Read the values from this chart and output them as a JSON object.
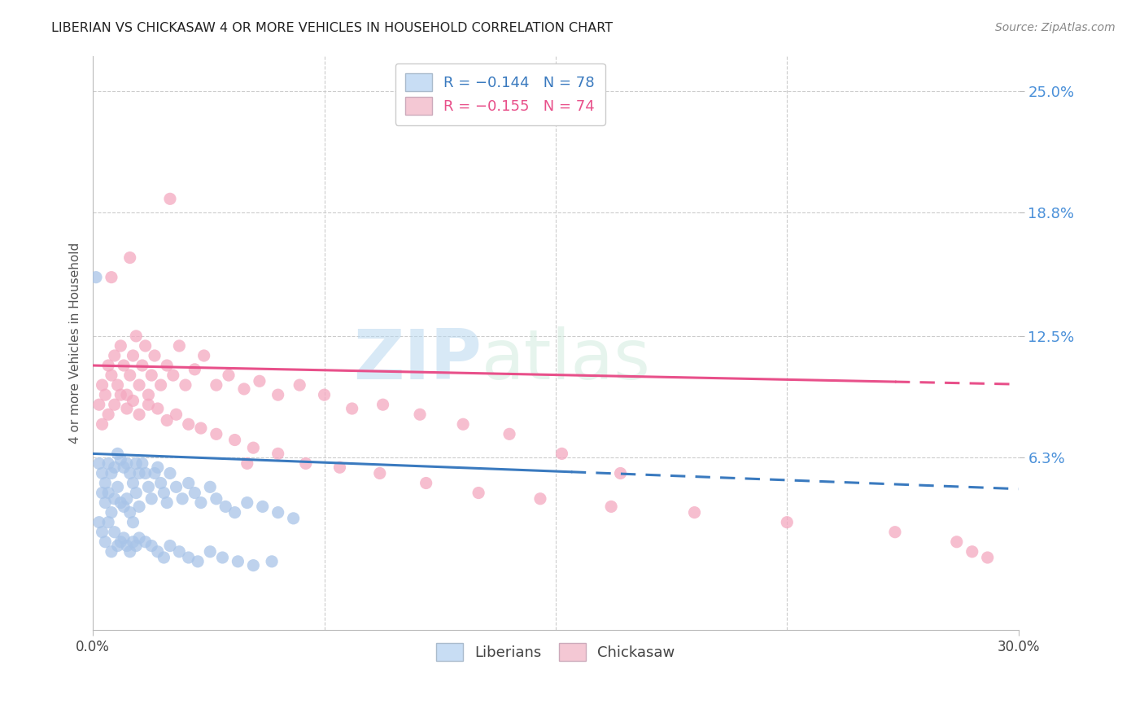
{
  "title": "LIBERIAN VS CHICKASAW 4 OR MORE VEHICLES IN HOUSEHOLD CORRELATION CHART",
  "source": "Source: ZipAtlas.com",
  "ylabel": "4 or more Vehicles in Household",
  "ytick_labels": [
    "6.3%",
    "12.5%",
    "18.8%",
    "25.0%"
  ],
  "ytick_values": [
    0.063,
    0.125,
    0.188,
    0.25
  ],
  "xlim": [
    0.0,
    0.3
  ],
  "ylim": [
    -0.025,
    0.268
  ],
  "liberian_color": "#a8c4e8",
  "chickasaw_color": "#f4a8c0",
  "liberian_line_color": "#3a7abf",
  "chickasaw_line_color": "#e8508a",
  "watermark_zip": "ZIP",
  "watermark_atlas": "atlas",
  "legend_liberian": "Liberians",
  "legend_chickasaw": "Chickasaw",
  "liberian_R": -0.144,
  "liberian_N": 78,
  "chickasaw_R": -0.155,
  "chickasaw_N": 74,
  "lib_line_x0": 0.0,
  "lib_line_x_solid_end": 0.155,
  "lib_line_x_dash_end": 0.3,
  "lib_line_y_at_0": 0.065,
  "lib_line_slope": -0.06,
  "chick_line_x0": 0.0,
  "chick_line_x_solid_end": 0.26,
  "chick_line_x_dash_end": 0.3,
  "chick_line_y_at_0": 0.11,
  "chick_line_slope": -0.032,
  "liberian_x": [
    0.002,
    0.003,
    0.003,
    0.004,
    0.004,
    0.005,
    0.005,
    0.006,
    0.006,
    0.007,
    0.007,
    0.008,
    0.008,
    0.009,
    0.009,
    0.01,
    0.01,
    0.011,
    0.011,
    0.012,
    0.012,
    0.013,
    0.013,
    0.014,
    0.014,
    0.015,
    0.015,
    0.016,
    0.017,
    0.018,
    0.019,
    0.02,
    0.021,
    0.022,
    0.023,
    0.024,
    0.025,
    0.027,
    0.029,
    0.031,
    0.033,
    0.035,
    0.038,
    0.04,
    0.043,
    0.046,
    0.05,
    0.055,
    0.06,
    0.065,
    0.002,
    0.003,
    0.004,
    0.005,
    0.006,
    0.007,
    0.008,
    0.009,
    0.01,
    0.011,
    0.012,
    0.013,
    0.014,
    0.015,
    0.017,
    0.019,
    0.021,
    0.023,
    0.025,
    0.028,
    0.031,
    0.034,
    0.038,
    0.042,
    0.047,
    0.052,
    0.058,
    0.001
  ],
  "liberian_y": [
    0.06,
    0.055,
    0.045,
    0.05,
    0.04,
    0.06,
    0.045,
    0.055,
    0.035,
    0.058,
    0.042,
    0.065,
    0.048,
    0.062,
    0.04,
    0.058,
    0.038,
    0.06,
    0.042,
    0.055,
    0.035,
    0.05,
    0.03,
    0.06,
    0.045,
    0.055,
    0.038,
    0.06,
    0.055,
    0.048,
    0.042,
    0.055,
    0.058,
    0.05,
    0.045,
    0.04,
    0.055,
    0.048,
    0.042,
    0.05,
    0.045,
    0.04,
    0.048,
    0.042,
    0.038,
    0.035,
    0.04,
    0.038,
    0.035,
    0.032,
    0.03,
    0.025,
    0.02,
    0.03,
    0.015,
    0.025,
    0.018,
    0.02,
    0.022,
    0.018,
    0.015,
    0.02,
    0.018,
    0.022,
    0.02,
    0.018,
    0.015,
    0.012,
    0.018,
    0.015,
    0.012,
    0.01,
    0.015,
    0.012,
    0.01,
    0.008,
    0.01,
    0.155
  ],
  "chickasaw_x": [
    0.002,
    0.003,
    0.004,
    0.005,
    0.006,
    0.007,
    0.008,
    0.009,
    0.01,
    0.011,
    0.012,
    0.013,
    0.014,
    0.015,
    0.016,
    0.017,
    0.018,
    0.019,
    0.02,
    0.022,
    0.024,
    0.026,
    0.028,
    0.03,
    0.033,
    0.036,
    0.04,
    0.044,
    0.049,
    0.054,
    0.06,
    0.067,
    0.075,
    0.084,
    0.094,
    0.106,
    0.12,
    0.135,
    0.152,
    0.171,
    0.003,
    0.005,
    0.007,
    0.009,
    0.011,
    0.013,
    0.015,
    0.018,
    0.021,
    0.024,
    0.027,
    0.031,
    0.035,
    0.04,
    0.046,
    0.052,
    0.06,
    0.069,
    0.08,
    0.093,
    0.108,
    0.125,
    0.145,
    0.168,
    0.195,
    0.225,
    0.26,
    0.28,
    0.285,
    0.29,
    0.006,
    0.012,
    0.025,
    0.05
  ],
  "chickasaw_y": [
    0.09,
    0.1,
    0.095,
    0.11,
    0.105,
    0.115,
    0.1,
    0.12,
    0.11,
    0.095,
    0.105,
    0.115,
    0.125,
    0.1,
    0.11,
    0.12,
    0.095,
    0.105,
    0.115,
    0.1,
    0.11,
    0.105,
    0.12,
    0.1,
    0.108,
    0.115,
    0.1,
    0.105,
    0.098,
    0.102,
    0.095,
    0.1,
    0.095,
    0.088,
    0.09,
    0.085,
    0.08,
    0.075,
    0.065,
    0.055,
    0.08,
    0.085,
    0.09,
    0.095,
    0.088,
    0.092,
    0.085,
    0.09,
    0.088,
    0.082,
    0.085,
    0.08,
    0.078,
    0.075,
    0.072,
    0.068,
    0.065,
    0.06,
    0.058,
    0.055,
    0.05,
    0.045,
    0.042,
    0.038,
    0.035,
    0.03,
    0.025,
    0.02,
    0.015,
    0.012,
    0.155,
    0.165,
    0.195,
    0.06
  ]
}
